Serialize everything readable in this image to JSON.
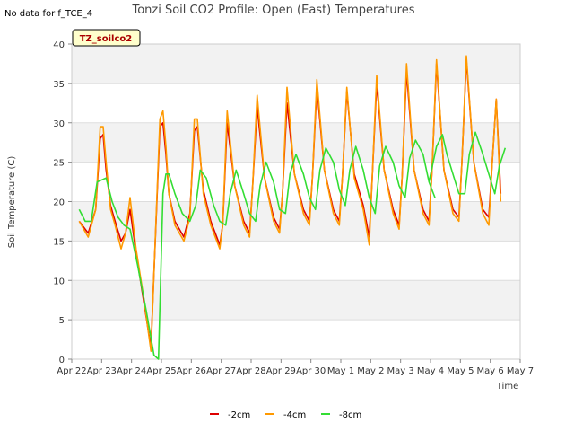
{
  "chart_data": {
    "type": "line",
    "title": "Tonzi Soil CO2 Profile: Open (East) Temperatures",
    "no_data_note": "No data for f_TCE_4",
    "badge": "TZ_soilco2",
    "xlabel": "Time",
    "ylabel": "Soil Temperature (C)",
    "ylim": [
      0,
      40
    ],
    "yticks": [
      0,
      5,
      10,
      15,
      20,
      25,
      30,
      35,
      40
    ],
    "xlim": [
      0,
      15
    ],
    "xtick_labels": [
      "Apr 22",
      "Apr 23",
      "Apr 24",
      "Apr 25",
      "Apr 26",
      "Apr 27",
      "Apr 28",
      "Apr 29",
      "Apr 30",
      "May 1",
      "May 2",
      "May 3",
      "May 4",
      "May 5",
      "May 6",
      "May 7"
    ],
    "grid": true,
    "legend_position": "bottom",
    "series": [
      {
        "name": "-2cm",
        "color": "#dd0000",
        "x": [
          0.25,
          0.55,
          0.8,
          0.95,
          1.05,
          1.15,
          1.3,
          1.45,
          1.65,
          1.8,
          1.95,
          2.15,
          2.4,
          2.65,
          2.95,
          3.05,
          3.15,
          3.25,
          3.45,
          3.75,
          3.95,
          4.1,
          4.2,
          4.4,
          4.65,
          4.95,
          5.05,
          5.2,
          5.45,
          5.75,
          5.95,
          6.05,
          6.2,
          6.45,
          6.75,
          6.95,
          7.05,
          7.2,
          7.45,
          7.75,
          7.95,
          8.05,
          8.2,
          8.45,
          8.75,
          8.95,
          9.05,
          9.2,
          9.45,
          9.75,
          9.95,
          10.05,
          10.2,
          10.45,
          10.75,
          10.95,
          11.05,
          11.2,
          11.45,
          11.75,
          11.95,
          12.05,
          12.2,
          12.45,
          12.75,
          12.95,
          13.05,
          13.2,
          13.45,
          13.75,
          13.95,
          14.05,
          14.2,
          14.35
        ],
        "y": [
          17.5,
          16.0,
          19.0,
          28.0,
          28.5,
          24.0,
          19.5,
          17.5,
          15.0,
          16.0,
          19.0,
          13.5,
          7.5,
          1.5,
          29.5,
          30.0,
          26.0,
          21.0,
          17.5,
          15.5,
          18.5,
          29.0,
          29.5,
          21.5,
          17.5,
          14.5,
          17.0,
          30.0,
          22.0,
          17.5,
          16.0,
          22.0,
          32.0,
          23.0,
          18.0,
          16.5,
          21.0,
          32.5,
          23.5,
          19.0,
          17.5,
          23.0,
          34.5,
          24.0,
          19.0,
          17.5,
          23.0,
          34.0,
          23.5,
          19.5,
          15.5,
          23.0,
          35.0,
          24.0,
          19.0,
          17.0,
          23.0,
          36.5,
          24.0,
          19.0,
          17.5,
          24.0,
          37.5,
          24.0,
          19.0,
          18.0,
          25.0,
          38.0,
          25.0,
          19.0,
          18.0,
          24.0,
          33.0,
          21.0
        ]
      },
      {
        "name": "-4cm",
        "color": "#ff9900",
        "x": [
          0.25,
          0.55,
          0.8,
          0.95,
          1.05,
          1.15,
          1.3,
          1.45,
          1.65,
          1.8,
          1.95,
          2.15,
          2.4,
          2.65,
          2.95,
          3.05,
          3.15,
          3.25,
          3.45,
          3.75,
          3.95,
          4.1,
          4.2,
          4.4,
          4.65,
          4.95,
          5.05,
          5.2,
          5.45,
          5.75,
          5.95,
          6.05,
          6.2,
          6.45,
          6.75,
          6.95,
          7.05,
          7.2,
          7.45,
          7.75,
          7.95,
          8.05,
          8.2,
          8.45,
          8.75,
          8.95,
          9.05,
          9.2,
          9.45,
          9.75,
          9.95,
          10.05,
          10.2,
          10.45,
          10.75,
          10.95,
          11.05,
          11.2,
          11.45,
          11.75,
          11.95,
          12.05,
          12.2,
          12.45,
          12.75,
          12.95,
          13.05,
          13.2,
          13.45,
          13.75,
          13.95,
          14.05,
          14.2,
          14.35
        ],
        "y": [
          17.5,
          15.5,
          19.0,
          29.5,
          29.5,
          25.0,
          19.0,
          17.0,
          14.0,
          16.0,
          20.5,
          14.0,
          8.0,
          1.0,
          30.5,
          31.5,
          27.0,
          21.0,
          17.0,
          15.0,
          18.0,
          30.5,
          30.5,
          21.0,
          17.0,
          14.0,
          17.0,
          31.5,
          22.0,
          17.0,
          15.5,
          22.0,
          33.5,
          23.0,
          17.5,
          16.0,
          21.0,
          34.5,
          23.5,
          18.5,
          17.0,
          23.0,
          35.5,
          24.0,
          18.5,
          17.0,
          23.0,
          34.5,
          23.0,
          19.0,
          14.5,
          23.0,
          36.0,
          24.0,
          18.5,
          16.5,
          23.0,
          37.5,
          24.0,
          18.5,
          17.0,
          24.0,
          38.0,
          24.0,
          18.5,
          17.5,
          25.0,
          38.5,
          25.0,
          18.5,
          17.0,
          24.0,
          33.0,
          20.0
        ]
      },
      {
        "name": "-8cm",
        "color": "#33dd33",
        "x": [
          0.25,
          0.45,
          0.65,
          0.85,
          1.15,
          1.35,
          1.55,
          1.75,
          1.95,
          2.2,
          2.5,
          2.75,
          2.9,
          3.05,
          3.15,
          3.25,
          3.45,
          3.7,
          3.95,
          4.15,
          4.3,
          4.5,
          4.75,
          4.95,
          5.15,
          5.3,
          5.5,
          5.75,
          5.95,
          6.15,
          6.3,
          6.5,
          6.75,
          6.95,
          7.15,
          7.3,
          7.5,
          7.75,
          7.95,
          8.15,
          8.3,
          8.5,
          8.75,
          8.95,
          9.15,
          9.3,
          9.5,
          9.75,
          9.95,
          10.15,
          10.3,
          10.5,
          10.75,
          10.95,
          11.15,
          11.3,
          11.5,
          11.75,
          11.95,
          12.15,
          11.95,
          12.2,
          12.4,
          12.55,
          12.75,
          12.95,
          13.15,
          13.3,
          13.5,
          13.75,
          13.95,
          14.15,
          14.3,
          14.5
        ],
        "y": [
          19.0,
          17.5,
          17.5,
          22.5,
          23.0,
          20.0,
          18.0,
          17.0,
          16.5,
          12.0,
          6.0,
          0.5,
          0.0,
          21.0,
          23.5,
          23.5,
          21.0,
          18.5,
          17.5,
          19.5,
          24.0,
          23.0,
          19.5,
          17.5,
          17.0,
          21.0,
          24.0,
          21.0,
          18.5,
          17.5,
          22.0,
          25.0,
          22.5,
          19.0,
          18.5,
          23.5,
          26.0,
          23.5,
          20.5,
          19.0,
          24.0,
          26.8,
          25.0,
          21.5,
          19.5,
          24.0,
          27.0,
          24.0,
          20.5,
          18.5,
          24.5,
          27.0,
          25.0,
          22.0,
          20.5,
          25.5,
          27.8,
          26.0,
          22.5,
          20.5,
          22.5,
          27.0,
          28.5,
          26.0,
          23.5,
          21.0,
          21.0,
          26.0,
          28.8,
          26.0,
          23.5,
          21.0,
          24.5,
          26.8
        ]
      }
    ]
  }
}
